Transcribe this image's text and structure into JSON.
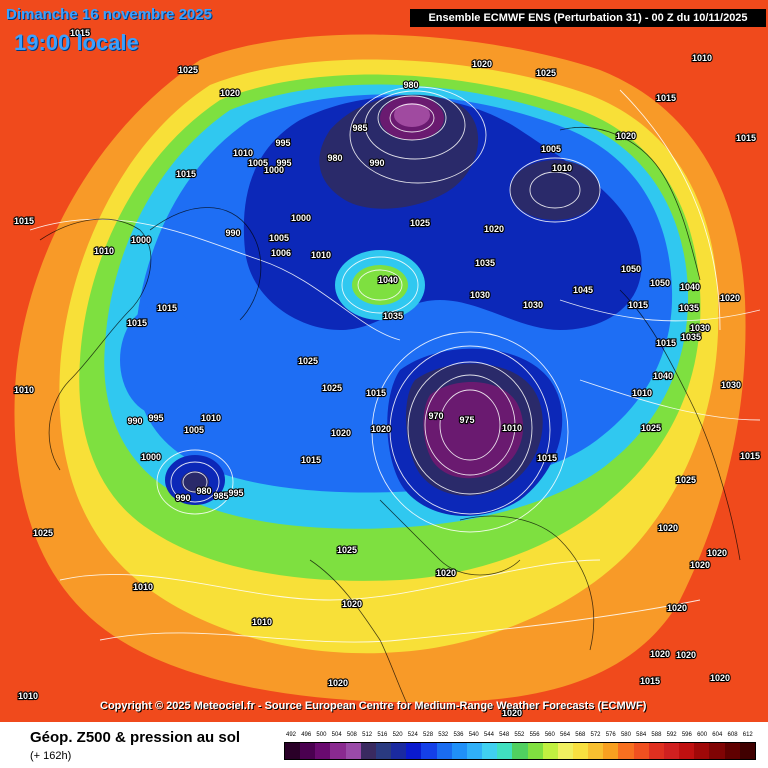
{
  "header": {
    "date": "Dimanche 16 novembre 2025",
    "time": "19:00 locale",
    "model": "Ensemble ECMWF ENS  (Perturbation 31)  -  00 Z du 10/11/2025"
  },
  "copyright": "Copyright © 2025 Meteociel.fr - Source European Centre for Medium-Range Weather Forecasts (ECMWF)",
  "footer": {
    "title": "Géop. Z500 & pression au sol",
    "subtitle": "(+ 162h)"
  },
  "legend": {
    "labels": [
      "492",
      "496",
      "500",
      "504",
      "508",
      "512",
      "516",
      "520",
      "524",
      "528",
      "532",
      "536",
      "540",
      "544",
      "548",
      "552",
      "556",
      "560",
      "564",
      "568",
      "572",
      "576",
      "580",
      "584",
      "588",
      "592",
      "596",
      "600",
      "604",
      "608",
      "612"
    ],
    "colors": [
      "#2a0028",
      "#4a0050",
      "#6a0a70",
      "#8a2a90",
      "#9a4aa8",
      "#3a2a60",
      "#2a3a80",
      "#1a2aa0",
      "#0a1acf",
      "#1440e8",
      "#1a6cf0",
      "#2090f8",
      "#30b0f8",
      "#40d0f0",
      "#40e0c0",
      "#50d060",
      "#80e040",
      "#c0f040",
      "#f0f060",
      "#f8e040",
      "#f8c030",
      "#f8a020",
      "#f87020",
      "#f05020",
      "#e03020",
      "#d02020",
      "#c01010",
      "#a00808",
      "#800404",
      "#600000",
      "#400000"
    ]
  },
  "map": {
    "colors": {
      "ocean_warm": "#f04a1c",
      "band_orange": "#f89a28",
      "band_yellow": "#f8e038",
      "band_green": "#7ee040",
      "band_cyan": "#30c8f0",
      "band_blue": "#1e6ef4",
      "band_deep": "#0c28b8",
      "low_dark": "#2a2a6a",
      "low_purple": "#6a1a70",
      "low_core": "#a04aa0"
    },
    "pressure_labels": [
      {
        "text": "1015"
      },
      {
        "text": "1025"
      },
      {
        "text": "1020"
      },
      {
        "text": "1020"
      },
      {
        "text": "1025"
      },
      {
        "text": "1010"
      },
      {
        "text": "1015"
      },
      {
        "text": "1015"
      },
      {
        "text": "980"
      },
      {
        "text": "985"
      },
      {
        "text": "990"
      },
      {
        "text": "980"
      },
      {
        "text": "995"
      },
      {
        "text": "995"
      },
      {
        "text": "1000"
      },
      {
        "text": "1005"
      },
      {
        "text": "1010"
      },
      {
        "text": "1015"
      },
      {
        "text": "1005"
      },
      {
        "text": "1010"
      },
      {
        "text": "1020"
      },
      {
        "text": "1015"
      },
      {
        "text": "1000"
      },
      {
        "text": "1010"
      },
      {
        "text": "1000"
      },
      {
        "text": "990"
      },
      {
        "text": "1005"
      },
      {
        "text": "1006"
      },
      {
        "text": "1010"
      },
      {
        "text": "1025"
      },
      {
        "text": "1020"
      },
      {
        "text": "1035"
      },
      {
        "text": "1040"
      },
      {
        "text": "1035"
      },
      {
        "text": "1030"
      },
      {
        "text": "1025"
      },
      {
        "text": "1030"
      },
      {
        "text": "1045"
      },
      {
        "text": "1050"
      },
      {
        "text": "1050"
      },
      {
        "text": "1040"
      },
      {
        "text": "1020"
      },
      {
        "text": "1015"
      },
      {
        "text": "1015"
      },
      {
        "text": "1010"
      },
      {
        "text": "1025"
      },
      {
        "text": "1025"
      },
      {
        "text": "1015"
      },
      {
        "text": "1015"
      },
      {
        "text": "990"
      },
      {
        "text": "995"
      },
      {
        "text": "1005"
      },
      {
        "text": "1010"
      },
      {
        "text": "1000"
      },
      {
        "text": "990"
      },
      {
        "text": "980"
      },
      {
        "text": "985"
      },
      {
        "text": "995"
      },
      {
        "text": "1020"
      },
      {
        "text": "1015"
      },
      {
        "text": "1020"
      },
      {
        "text": "1025"
      },
      {
        "text": "970"
      },
      {
        "text": "975"
      },
      {
        "text": "1010"
      },
      {
        "text": "1015"
      },
      {
        "text": "1025"
      },
      {
        "text": "1020"
      },
      {
        "text": "1020"
      },
      {
        "text": "1010"
      },
      {
        "text": "1010"
      },
      {
        "text": "1025"
      },
      {
        "text": "1025"
      },
      {
        "text": "1015"
      },
      {
        "text": "1020"
      },
      {
        "text": "1020"
      },
      {
        "text": "1020"
      },
      {
        "text": "1020"
      },
      {
        "text": "1020"
      },
      {
        "text": "1020"
      },
      {
        "text": "1015"
      },
      {
        "text": "1010"
      },
      {
        "text": "1035"
      },
      {
        "text": "1030"
      },
      {
        "text": "1035"
      },
      {
        "text": "1025"
      },
      {
        "text": "1030"
      },
      {
        "text": "1040"
      },
      {
        "text": "1010"
      },
      {
        "text": "1015"
      },
      {
        "text": "1020"
      },
      {
        "text": "1020"
      },
      {
        "text": "1020"
      }
    ]
  }
}
